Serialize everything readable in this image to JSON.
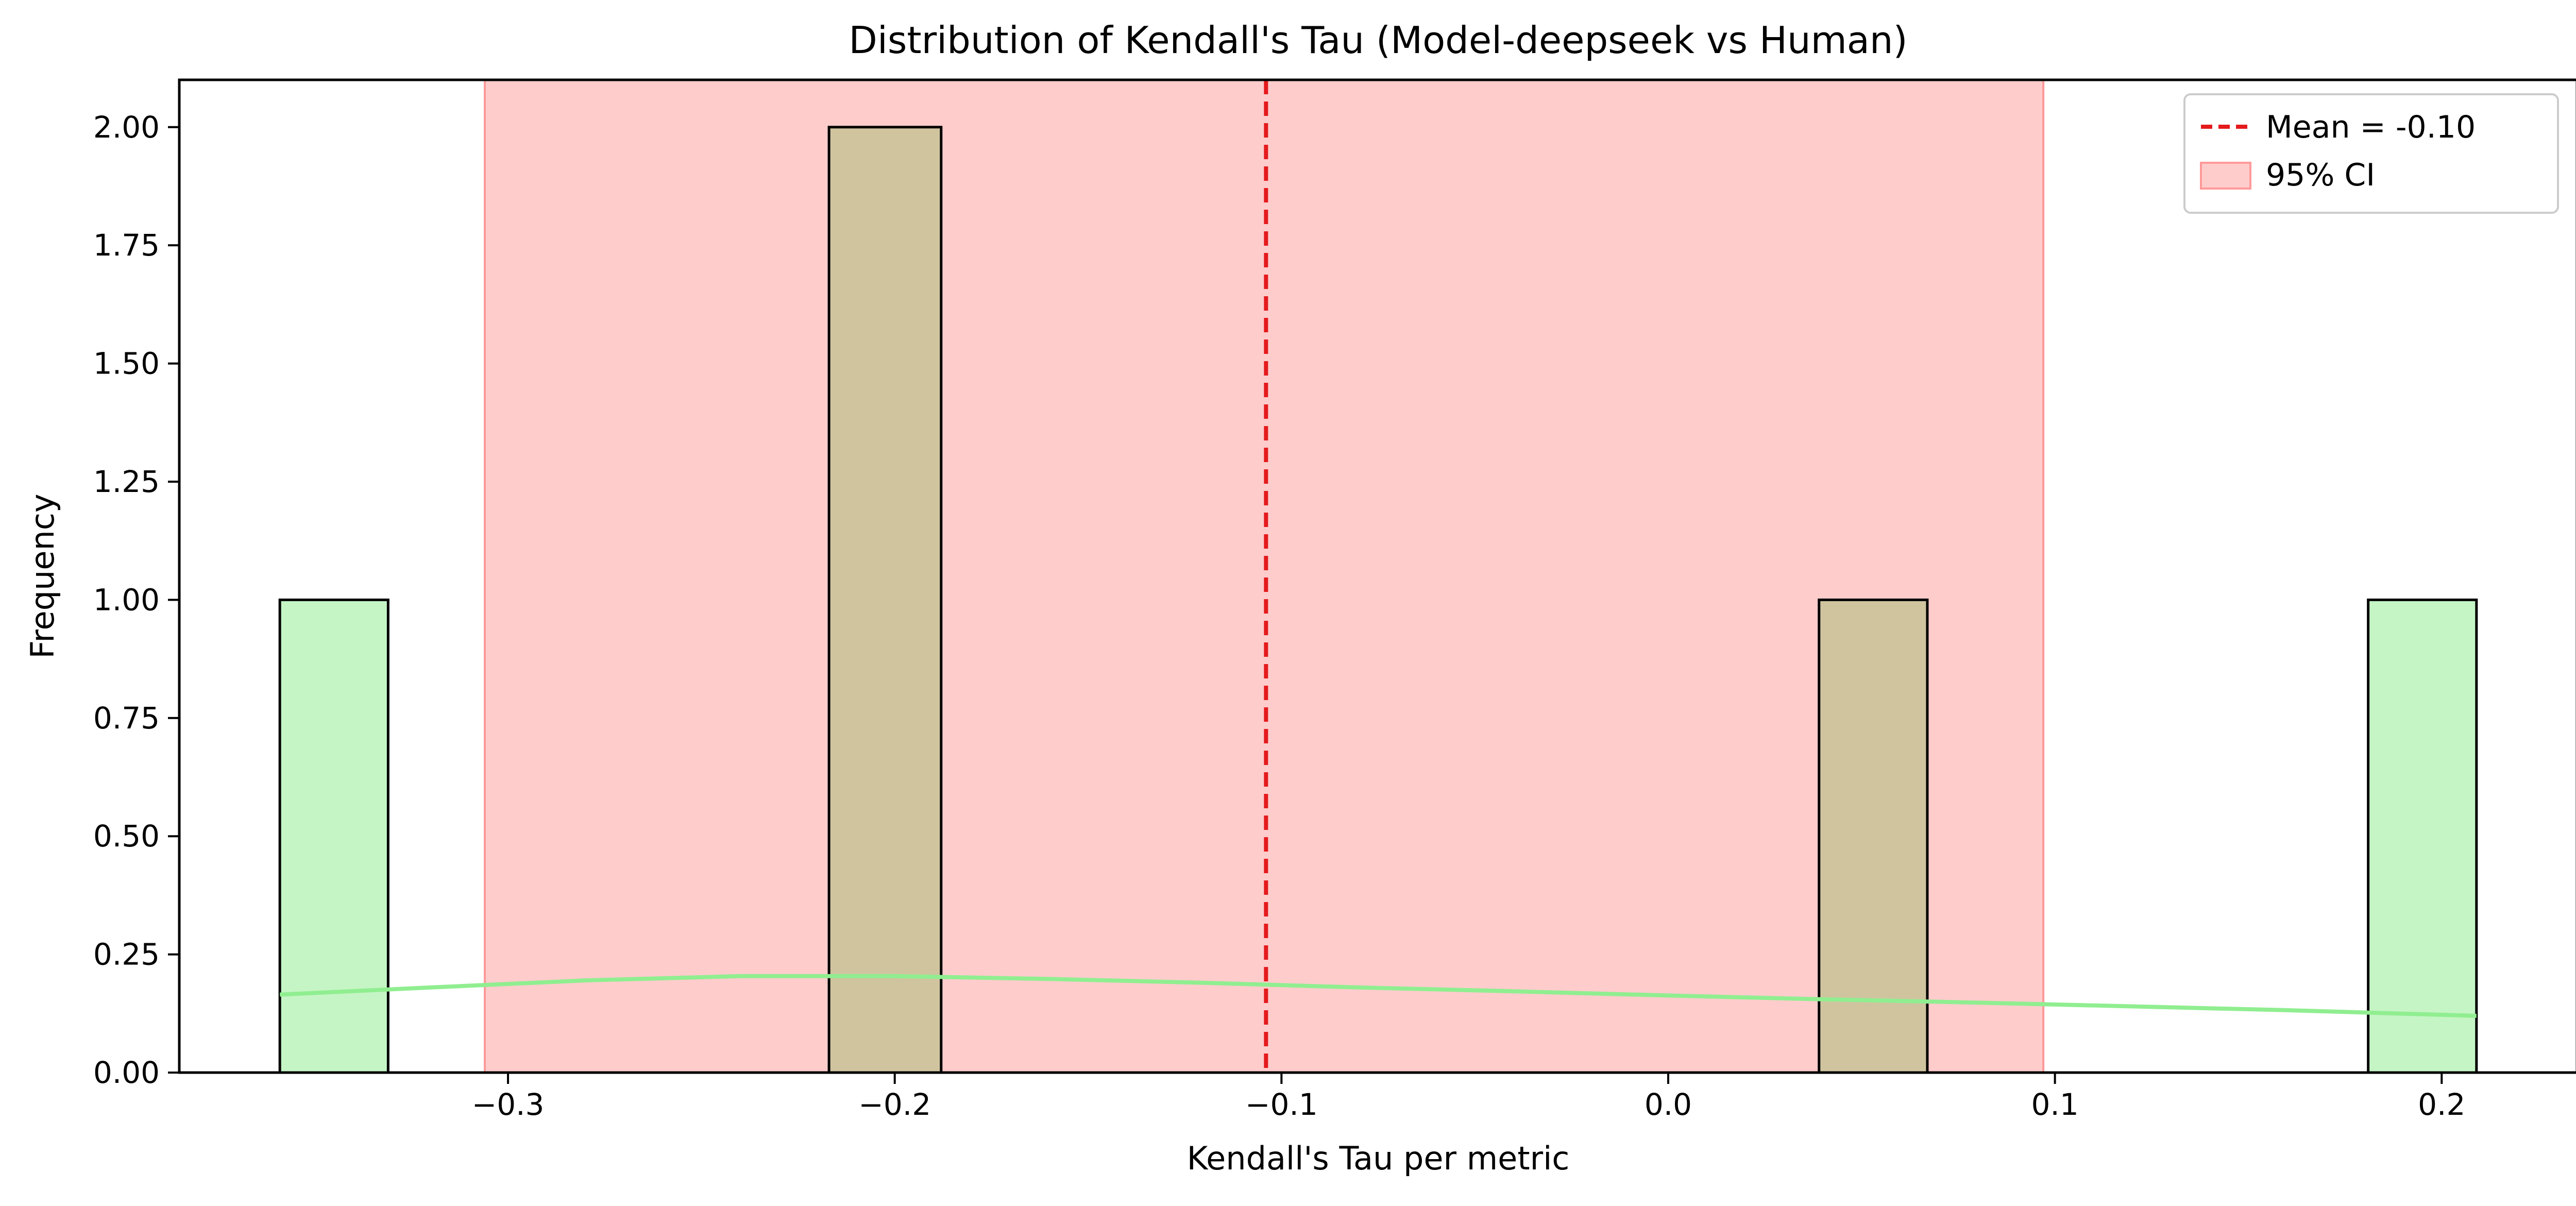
{
  "chart_data": {
    "type": "histogram",
    "title": "Distribution of Kendall's Tau (Model-deepseek vs Human)",
    "xlabel": "Kendall's Tau per metric",
    "ylabel": "Frequency",
    "xlim": [
      -0.385,
      0.235
    ],
    "ylim": [
      0,
      2.1
    ],
    "x_ticks": [
      {
        "value": -0.3,
        "label": "−0.3"
      },
      {
        "value": -0.2,
        "label": "−0.2"
      },
      {
        "value": -0.1,
        "label": "−0.1"
      },
      {
        "value": 0.0,
        "label": "0.0"
      },
      {
        "value": 0.1,
        "label": "0.1"
      },
      {
        "value": 0.2,
        "label": "0.2"
      }
    ],
    "y_ticks": [
      {
        "value": 0.0,
        "label": "0.00"
      },
      {
        "value": 0.25,
        "label": "0.25"
      },
      {
        "value": 0.5,
        "label": "0.50"
      },
      {
        "value": 0.75,
        "label": "0.75"
      },
      {
        "value": 1.0,
        "label": "1.00"
      },
      {
        "value": 1.25,
        "label": "1.25"
      },
      {
        "value": 1.5,
        "label": "1.50"
      },
      {
        "value": 1.75,
        "label": "1.75"
      },
      {
        "value": 2.0,
        "label": "2.00"
      }
    ],
    "bins": [
      {
        "start": -0.359,
        "end": -0.331,
        "count": 1,
        "color": "#c5f5c5"
      },
      {
        "start": -0.217,
        "end": -0.188,
        "count": 2,
        "color": "#d0c49f"
      },
      {
        "start": 0.039,
        "end": 0.067,
        "count": 1,
        "color": "#d0c49f"
      },
      {
        "start": 0.181,
        "end": 0.209,
        "count": 1,
        "color": "#c5f5c5"
      }
    ],
    "mean": {
      "value": -0.104,
      "label": "Mean = -0.10",
      "color": "#e41a1c"
    },
    "ci": {
      "low": -0.306,
      "high": 0.097,
      "label": "95% CI",
      "color": "#ff9999"
    },
    "kde": {
      "color": "#90ee90",
      "x": [
        -0.359,
        -0.32,
        -0.28,
        -0.24,
        -0.2,
        -0.16,
        -0.12,
        -0.08,
        -0.04,
        0.0,
        0.04,
        0.08,
        0.12,
        0.16,
        0.209
      ],
      "y": [
        0.165,
        0.18,
        0.195,
        0.204,
        0.204,
        0.198,
        0.19,
        0.18,
        0.172,
        0.163,
        0.155,
        0.148,
        0.14,
        0.132,
        0.12
      ]
    },
    "legend_position": "upper right",
    "grid": false
  }
}
